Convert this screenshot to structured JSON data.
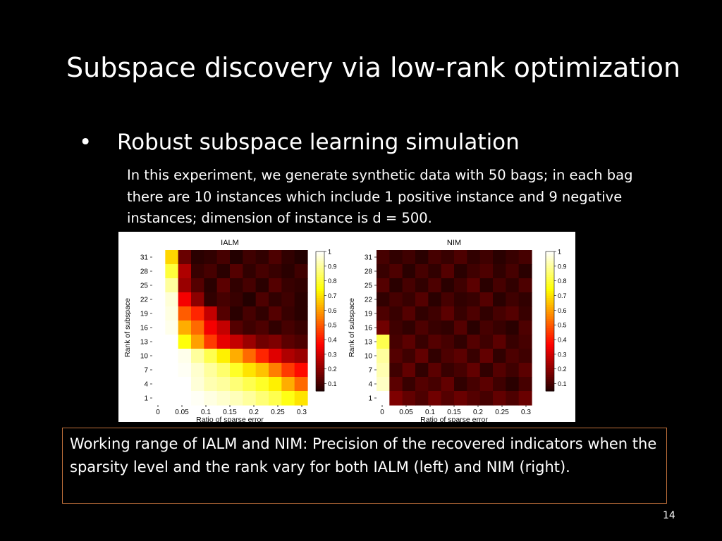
{
  "slide": {
    "title": "Subspace discovery via low-rank optimization",
    "bullet_symbol": "•",
    "bullet": "Robust subspace learning simulation",
    "body": "In this experiment, we generate synthetic data with 50 bags; in each bag there are 10 instances which include 1 positive instance and 9 negative instances; dimension of instance is d = 500.",
    "caption": "Working range of IALM and NIM: Precision of the recovered indicators when the sparsity level and the rank vary for both IALM (left) and NIM (right).",
    "page_number": "14"
  },
  "chart_data": [
    {
      "type": "heatmap",
      "title": "IALM",
      "xlabel": "Ratio of sparse error",
      "ylabel": "Rank of subspace",
      "x_ticks": [
        "0",
        "0.05",
        "0.1",
        "0.15",
        "0.2",
        "0.25",
        "0.3"
      ],
      "y_ticks": [
        "1",
        "4",
        "7",
        "10",
        "13",
        "16",
        "19",
        "22",
        "25",
        "28",
        "31"
      ],
      "colorbar_ticks": [
        "1",
        "0.9",
        "0.8",
        "0.7",
        "0.6",
        "0.5",
        "0.4",
        "0.3",
        "0.2",
        "0.1"
      ],
      "colorbar_range": [
        0.05,
        1
      ],
      "colormap": "hot",
      "rows_top_to_bottom": [
        [
          1.0,
          0.68,
          0.15,
          0.06,
          0.07,
          0.1,
          0.05,
          0.09,
          0.07,
          0.11,
          0.07,
          0.05
        ],
        [
          1.0,
          0.8,
          0.25,
          0.08,
          0.1,
          0.06,
          0.12,
          0.07,
          0.1,
          0.08,
          0.06,
          0.09
        ],
        [
          1.0,
          0.9,
          0.22,
          0.12,
          0.06,
          0.13,
          0.07,
          0.1,
          0.06,
          0.12,
          0.08,
          0.07
        ],
        [
          1.0,
          0.96,
          0.35,
          0.2,
          0.07,
          0.1,
          0.08,
          0.05,
          0.11,
          0.07,
          0.09,
          0.06
        ],
        [
          1.0,
          0.97,
          0.5,
          0.42,
          0.28,
          0.12,
          0.06,
          0.1,
          0.07,
          0.12,
          0.08,
          0.06
        ],
        [
          1.0,
          0.98,
          0.62,
          0.52,
          0.35,
          0.28,
          0.12,
          0.09,
          0.11,
          0.07,
          0.1,
          0.08
        ],
        [
          1.0,
          1.0,
          0.75,
          0.6,
          0.45,
          0.33,
          0.28,
          0.22,
          0.16,
          0.18,
          0.13,
          0.11
        ],
        [
          1.0,
          1.0,
          0.98,
          0.9,
          0.82,
          0.72,
          0.62,
          0.52,
          0.42,
          0.32,
          0.25,
          0.22
        ],
        [
          1.0,
          1.0,
          0.99,
          0.95,
          0.9,
          0.85,
          0.78,
          0.7,
          0.65,
          0.55,
          0.45,
          0.38
        ],
        [
          1.0,
          1.0,
          1.0,
          0.96,
          0.92,
          0.9,
          0.86,
          0.82,
          0.78,
          0.72,
          0.62,
          0.52
        ],
        [
          1.0,
          1.0,
          1.0,
          0.99,
          0.97,
          0.95,
          0.93,
          0.9,
          0.86,
          0.82,
          0.76,
          0.7
        ]
      ]
    },
    {
      "type": "heatmap",
      "title": "NIM",
      "xlabel": "Ratio of sparse error",
      "ylabel": "Rank of subspace",
      "x_ticks": [
        "0",
        "0.05",
        "0.1",
        "0.15",
        "0.2",
        "0.25",
        "0.3"
      ],
      "y_ticks": [
        "1",
        "4",
        "7",
        "10",
        "13",
        "16",
        "19",
        "22",
        "25",
        "28",
        "31"
      ],
      "colorbar_ticks": [
        "1",
        "0.9",
        "0.8",
        "0.7",
        "0.6",
        "0.5",
        "0.4",
        "0.3",
        "0.2",
        "0.1"
      ],
      "colorbar_range": [
        0.05,
        1
      ],
      "colormap": "hot",
      "rows_top_to_bottom": [
        [
          0.1,
          0.07,
          0.09,
          0.06,
          0.1,
          0.08,
          0.11,
          0.07,
          0.09,
          0.06,
          0.08,
          0.1
        ],
        [
          0.08,
          0.11,
          0.06,
          0.1,
          0.07,
          0.12,
          0.06,
          0.09,
          0.11,
          0.07,
          0.1,
          0.06
        ],
        [
          0.12,
          0.06,
          0.1,
          0.07,
          0.11,
          0.06,
          0.09,
          0.13,
          0.06,
          0.1,
          0.07,
          0.11
        ],
        [
          0.07,
          0.1,
          0.08,
          0.12,
          0.06,
          0.1,
          0.07,
          0.08,
          0.12,
          0.06,
          0.09,
          0.07
        ],
        [
          0.11,
          0.08,
          0.12,
          0.07,
          0.09,
          0.13,
          0.08,
          0.11,
          0.07,
          0.1,
          0.12,
          0.08
        ],
        [
          0.16,
          0.09,
          0.07,
          0.11,
          0.08,
          0.07,
          0.12,
          0.06,
          0.1,
          0.08,
          0.06,
          0.11
        ],
        [
          0.82,
          0.1,
          0.13,
          0.08,
          0.12,
          0.1,
          0.07,
          0.12,
          0.09,
          0.13,
          0.08,
          0.1
        ],
        [
          0.9,
          0.12,
          0.09,
          0.14,
          0.07,
          0.11,
          0.13,
          0.08,
          0.14,
          0.07,
          0.11,
          0.09
        ],
        [
          0.92,
          0.09,
          0.14,
          0.07,
          0.13,
          0.08,
          0.1,
          0.14,
          0.07,
          0.12,
          0.09,
          0.13
        ],
        [
          0.94,
          0.13,
          0.08,
          0.12,
          0.1,
          0.14,
          0.07,
          0.1,
          0.13,
          0.09,
          0.06,
          0.1
        ],
        [
          1.0,
          0.18,
          0.14,
          0.11,
          0.16,
          0.12,
          0.15,
          0.12,
          0.1,
          0.14,
          0.11,
          0.15
        ]
      ]
    }
  ]
}
